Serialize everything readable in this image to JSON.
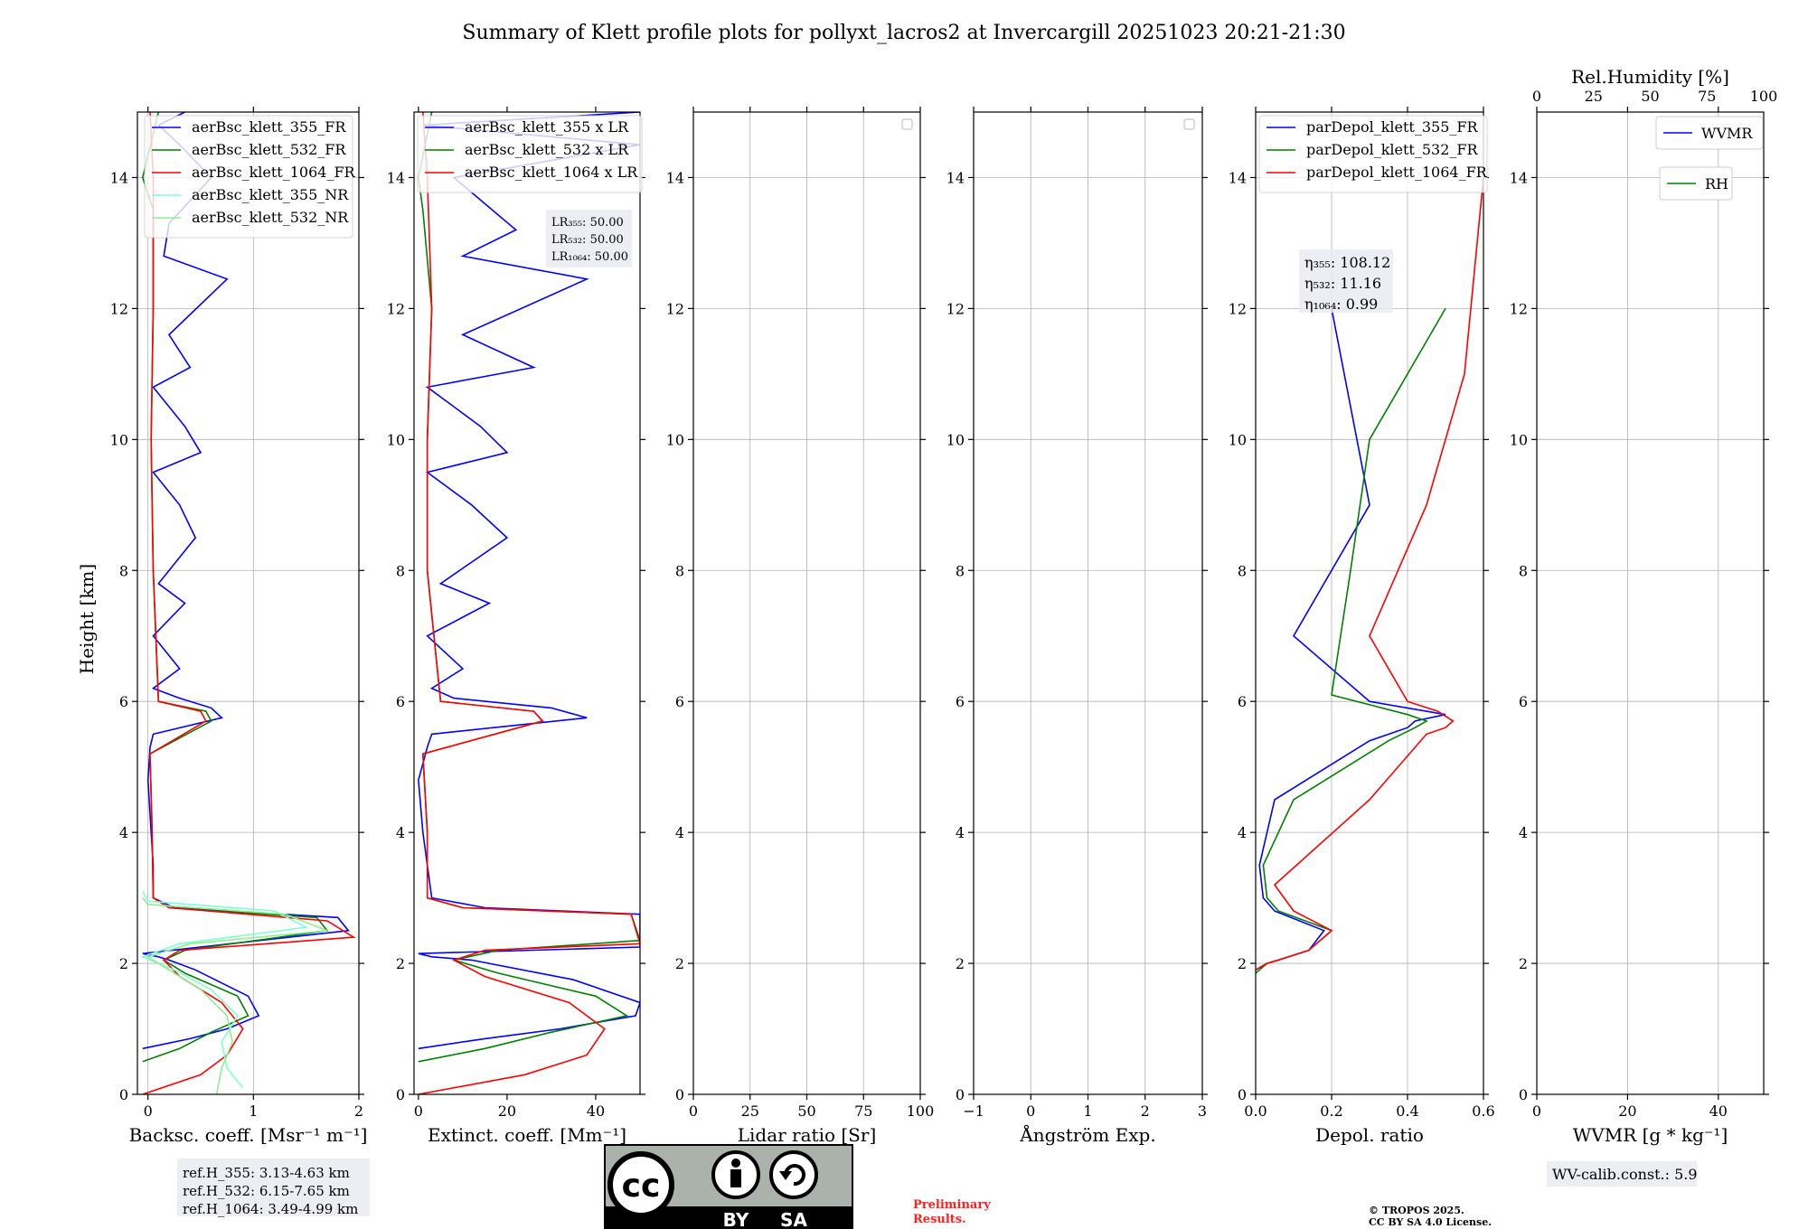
{
  "title": "Summary of Klett profile plots for pollyxt_lacros2 at Invercargill 20251023 20:21-21:30",
  "y_label": "Height [km]",
  "ref_heights": [
    "ref.H_355: 3.13-4.63 km",
    "ref.H_532: 6.15-7.65 km",
    "ref.H_1064: 3.49-4.99 km"
  ],
  "wv_calib": "WV-calib.const.: 5.9",
  "preliminary": [
    "Preliminary",
    "Results."
  ],
  "copyright": [
    "© TROPOS 2025.",
    "CC BY SA 4.0 License."
  ],
  "license_badge": {
    "cc": "cc",
    "by": "BY",
    "sa": "SA"
  },
  "colors": {
    "c355": "#0000ff",
    "c532": "#008000",
    "c1064": "#ff0000",
    "nr355": "#7fffd4",
    "nr532": "#90ee90",
    "grid": "#b0b0b0"
  },
  "chart_data": [
    {
      "type": "line",
      "name": "backscatter",
      "xlabel": "Backsc. coeff. [Msr⁻¹ m⁻¹]",
      "ylabel": "Height [km]",
      "xlim": [
        -0.1,
        2
      ],
      "ylim": [
        0,
        15
      ],
      "xticks": [
        0,
        1,
        2
      ],
      "yticks": [
        0,
        2,
        4,
        6,
        8,
        10,
        12,
        14
      ],
      "grid": true,
      "legend_position": "top-right",
      "series": [
        {
          "name": "aerBsc_klett_355_FR",
          "color": "#0000ff",
          "x": [
            -0.05,
            0.4,
            0.75,
            1.05,
            0.95,
            0.45,
            0.2,
            0.1,
            -0.05,
            1.9,
            1.8,
            0.25,
            0.05,
            0.05,
            0.03,
            0.0,
            0.02,
            0.05,
            0.7,
            0.6,
            0.3,
            0.05,
            0.3,
            0.05,
            0.35,
            0.1,
            0.45,
            0.3,
            0.05,
            0.5,
            0.35,
            0.05,
            0.4,
            0.2,
            0.75,
            0.15,
            0.2,
            0.6,
            0.3,
            0.1,
            0.35
          ],
          "y": [
            0.7,
            0.85,
            1.0,
            1.2,
            1.5,
            1.9,
            2.05,
            2.1,
            2.15,
            2.5,
            2.7,
            2.85,
            3.0,
            3.5,
            4.0,
            4.8,
            5.3,
            5.5,
            5.75,
            5.9,
            6.05,
            6.2,
            6.5,
            7.0,
            7.5,
            7.8,
            8.5,
            9.0,
            9.5,
            9.8,
            10.2,
            10.8,
            11.1,
            11.6,
            12.45,
            12.8,
            13.3,
            14.0,
            14.5,
            14.8,
            15.0
          ]
        },
        {
          "name": "aerBsc_klett_532_FR",
          "color": "#008000",
          "x": [
            -0.05,
            0.3,
            0.6,
            0.95,
            0.85,
            0.35,
            0.15,
            0.35,
            1.7,
            1.6,
            0.2,
            0.05,
            0.04,
            0.02,
            0.6,
            0.55,
            0.1,
            0.05,
            0.03,
            0.05,
            0.05,
            -0.05,
            0.1
          ],
          "y": [
            0.5,
            0.7,
            0.95,
            1.2,
            1.5,
            1.85,
            2.05,
            2.2,
            2.5,
            2.7,
            2.85,
            3.0,
            4.0,
            5.2,
            5.7,
            5.85,
            6.0,
            8.0,
            10.0,
            12.0,
            13.5,
            14.0,
            15.0
          ]
        },
        {
          "name": "aerBsc_klett_1064_FR",
          "color": "#ff0000",
          "x": [
            -0.05,
            0.5,
            0.75,
            0.9,
            0.7,
            0.3,
            0.15,
            0.3,
            1.95,
            1.7,
            0.2,
            0.05,
            0.04,
            0.02,
            0.55,
            0.5,
            0.1,
            0.05,
            0.03,
            0.05,
            0.05,
            0.02
          ],
          "y": [
            0.0,
            0.3,
            0.6,
            1.0,
            1.4,
            1.8,
            2.05,
            2.2,
            2.4,
            2.65,
            2.85,
            3.0,
            4.0,
            5.2,
            5.7,
            5.85,
            6.0,
            8.0,
            10.0,
            12.0,
            14.0,
            15.0
          ]
        },
        {
          "name": "aerBsc_klett_355_NR",
          "color": "#7fffd4",
          "x": [
            0.9,
            0.75,
            0.7,
            0.85,
            0.6,
            0.25,
            -0.05,
            0.3,
            1.5,
            1.2,
            0.0,
            -0.05
          ],
          "y": [
            0.1,
            0.4,
            0.8,
            1.2,
            1.6,
            1.9,
            2.1,
            2.3,
            2.55,
            2.8,
            2.95,
            3.1
          ]
        },
        {
          "name": "aerBsc_klett_532_NR",
          "color": "#90ee90",
          "x": [
            0.65,
            0.7,
            0.8,
            0.75,
            0.5,
            0.2,
            0.0,
            0.4,
            1.7,
            1.3,
            0.0,
            -0.05
          ],
          "y": [
            0.0,
            0.4,
            0.8,
            1.2,
            1.6,
            1.9,
            2.1,
            2.3,
            2.5,
            2.75,
            2.9,
            3.0
          ]
        }
      ]
    },
    {
      "type": "line",
      "name": "extinction",
      "xlabel": "Extinct. coeff. [Mm⁻¹]",
      "xlim": [
        -1,
        50
      ],
      "ylim": [
        0,
        15
      ],
      "xticks": [
        0,
        20,
        40
      ],
      "yticks": [
        0,
        2,
        4,
        6,
        8,
        10,
        12,
        14
      ],
      "grid": false,
      "legend_position": "top-left",
      "lidar_ratio_box": [
        "LR₃₅₅: 50.00",
        "LR₅₃₂: 50.00",
        "LR₁₀₆₄: 50.00"
      ],
      "series": [
        {
          "name": "aerBsc_klett_355 x LR",
          "color": "#0000ff",
          "x": [
            0,
            15,
            32,
            49,
            50,
            35,
            12,
            3,
            0,
            50,
            50,
            15,
            3,
            2,
            1,
            0,
            2,
            3,
            38,
            30,
            8,
            3,
            10,
            2,
            16,
            5,
            20,
            12,
            2,
            20,
            14,
            2,
            26,
            10,
            38,
            10,
            22,
            8,
            50,
            1,
            50
          ],
          "y": [
            0.7,
            0.85,
            1.0,
            1.2,
            1.4,
            1.75,
            2.05,
            2.1,
            2.15,
            2.25,
            2.75,
            2.85,
            3.0,
            3.5,
            4.0,
            4.8,
            5.3,
            5.5,
            5.75,
            5.9,
            6.05,
            6.2,
            6.5,
            7.0,
            7.5,
            7.8,
            8.5,
            9.0,
            9.5,
            9.8,
            10.2,
            10.8,
            11.1,
            11.6,
            12.45,
            12.8,
            13.2,
            14.0,
            14.5,
            14.8,
            15.0
          ]
        },
        {
          "name": "aerBsc_klett_532 x LR",
          "color": "#008000",
          "x": [
            0,
            15,
            30,
            47,
            40,
            18,
            8,
            18,
            50,
            48,
            10,
            2,
            2,
            1,
            28,
            26,
            5,
            2,
            2,
            3,
            1,
            0,
            3
          ],
          "y": [
            0.5,
            0.7,
            0.95,
            1.2,
            1.5,
            1.85,
            2.05,
            2.2,
            2.35,
            2.75,
            2.85,
            3.0,
            4.0,
            5.2,
            5.7,
            5.85,
            6.0,
            8.0,
            10.0,
            12.0,
            13.5,
            14.0,
            15.0
          ]
        },
        {
          "name": "aerBsc_klett_1064 x LR",
          "color": "#ff0000",
          "x": [
            0,
            24,
            38,
            42,
            34,
            15,
            8,
            15,
            50,
            48,
            10,
            2,
            2,
            1,
            28,
            26,
            5,
            2,
            2,
            3,
            2,
            1
          ],
          "y": [
            0.0,
            0.3,
            0.6,
            1.0,
            1.4,
            1.8,
            2.05,
            2.2,
            2.3,
            2.75,
            2.85,
            3.0,
            4.0,
            5.2,
            5.7,
            5.85,
            6.0,
            8.0,
            10.0,
            12.0,
            14.0,
            15.0
          ]
        }
      ]
    },
    {
      "type": "line",
      "name": "lidar_ratio",
      "xlabel": "Lidar ratio [Sr]",
      "xlim": [
        0,
        100
      ],
      "ylim": [
        0,
        15
      ],
      "xticks": [
        0,
        25,
        50,
        75,
        100
      ],
      "yticks": [
        0,
        2,
        4,
        6,
        8,
        10,
        12,
        14
      ],
      "grid": true,
      "series": []
    },
    {
      "type": "line",
      "name": "angstrom",
      "xlabel": "Ångström Exp.",
      "xlim": [
        -1,
        3
      ],
      "ylim": [
        0,
        15
      ],
      "xticks": [
        -1,
        0,
        1,
        2,
        3
      ],
      "xtick_labels": [
        "−1",
        "0",
        "1",
        "2",
        "3"
      ],
      "yticks": [
        0,
        2,
        4,
        6,
        8,
        10,
        12,
        14
      ],
      "grid": true,
      "series": []
    },
    {
      "type": "line",
      "name": "depolarization",
      "xlabel": "Depol. ratio",
      "xlim": [
        0,
        0.6
      ],
      "ylim": [
        0,
        15
      ],
      "xticks": [
        0.0,
        0.2,
        0.4,
        0.6
      ],
      "xtick_labels": [
        "0.0",
        "0.2",
        "0.4",
        "0.6"
      ],
      "yticks": [
        0,
        2,
        4,
        6,
        8,
        10,
        12,
        14
      ],
      "grid": true,
      "legend_position": "top-left",
      "eta_box": [
        "η₃₅₅: 108.12",
        "η₅₃₂: 11.16",
        "η₁₀₆₄: 0.99"
      ],
      "series": [
        {
          "name": "parDepol_klett_355_FR",
          "color": "#0000ff",
          "x": [
            0.0,
            0.03,
            0.06,
            0.14,
            0.18,
            0.05,
            0.02,
            0.01,
            0.05,
            0.3,
            0.4,
            0.42,
            0.5,
            0.3,
            0.1,
            0.3,
            0.2
          ],
          "y": [
            1.9,
            2.0,
            2.05,
            2.2,
            2.5,
            2.8,
            3.0,
            3.5,
            4.5,
            5.4,
            5.6,
            5.7,
            5.8,
            6.0,
            7.0,
            9.0,
            12.0
          ]
        },
        {
          "name": "parDepol_klett_532_FR",
          "color": "#008000",
          "x": [
            0.0,
            0.03,
            0.06,
            0.14,
            0.2,
            0.06,
            0.03,
            0.02,
            0.1,
            0.35,
            0.42,
            0.45,
            0.4,
            0.2,
            0.25,
            0.3,
            0.5
          ],
          "y": [
            1.85,
            2.0,
            2.05,
            2.2,
            2.5,
            2.8,
            3.0,
            3.5,
            4.5,
            5.4,
            5.6,
            5.7,
            5.8,
            6.1,
            8.0,
            10.0,
            12.0
          ]
        },
        {
          "name": "parDepol_klett_1064_FR",
          "color": "#ff0000",
          "x": [
            0.0,
            0.03,
            0.06,
            0.14,
            0.2,
            0.1,
            0.05,
            0.3,
            0.45,
            0.5,
            0.52,
            0.48,
            0.4,
            0.3,
            0.45,
            0.55,
            0.6
          ],
          "y": [
            1.9,
            2.0,
            2.05,
            2.2,
            2.5,
            2.8,
            3.2,
            4.5,
            5.5,
            5.6,
            5.7,
            5.85,
            6.0,
            7.0,
            9.0,
            11.0,
            14.0
          ]
        }
      ]
    },
    {
      "type": "line",
      "name": "water_vapor",
      "xlabel": "WVMR [g * kg⁻¹]",
      "xlim": [
        0,
        50
      ],
      "ylim": [
        0,
        15
      ],
      "xticks": [
        0,
        20,
        40
      ],
      "yticks": [
        0,
        2,
        4,
        6,
        8,
        10,
        12,
        14
      ],
      "grid": true,
      "top_axis": {
        "label": "Rel.Humidity [%]",
        "xlim": [
          0,
          100
        ],
        "xticks": [
          0,
          25,
          50,
          75,
          100
        ]
      },
      "legend": [
        "WVMR",
        "RH"
      ],
      "series": []
    }
  ]
}
